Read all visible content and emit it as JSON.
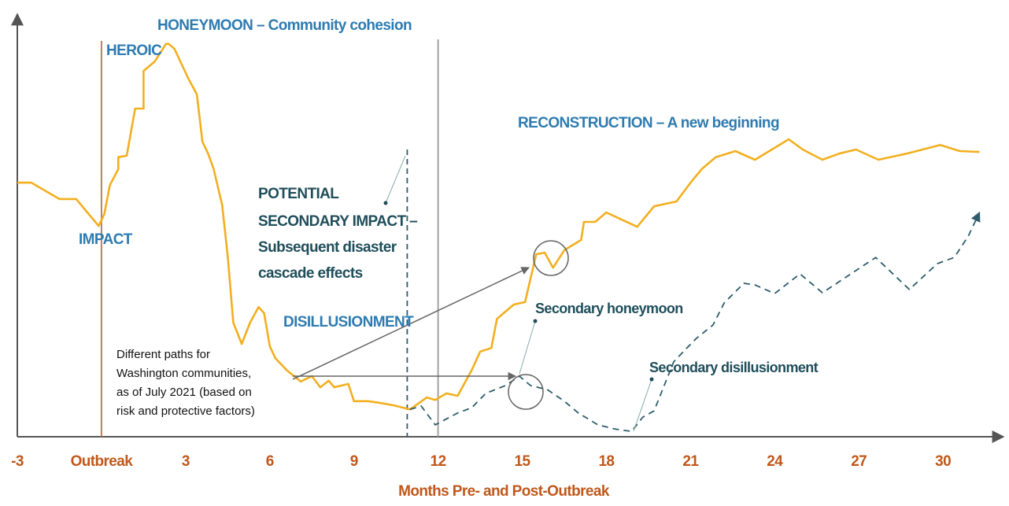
{
  "chart_data": {
    "type": "line",
    "xlabel": "Months Pre- and Post-Outbreak",
    "xlim": [
      -3,
      32
    ],
    "ylim": [
      0,
      100
    ],
    "xticks": [
      -3,
      {
        "value": 0,
        "label": "Outbreak"
      },
      3,
      6,
      9,
      12,
      15,
      18,
      21,
      24,
      27,
      30
    ],
    "series": [
      {
        "color": "#f2af1f",
        "style": "solid",
        "x": [
          -3.0,
          -2.5,
          -1.5,
          -0.9,
          -0.1,
          0.1,
          0.3,
          0.6,
          0.6,
          0.9,
          1.2,
          1.5,
          1.5,
          1.9,
          2.3,
          2.4,
          2.6,
          3.1,
          3.4,
          3.6,
          3.8,
          4.0,
          4.3,
          4.5,
          4.7,
          5.0,
          5.3,
          5.6,
          5.8,
          6.0,
          6.2,
          6.6,
          7.1,
          7.5,
          7.8,
          8.1,
          8.3,
          8.8,
          9.0,
          9.5,
          9.9,
          10.4,
          11.0,
          11.6,
          11.9,
          12.3,
          12.7,
          13.2,
          13.5,
          13.9,
          14.1,
          14.7,
          15.1,
          15.5,
          15.8,
          16.1,
          16.5,
          17.1,
          17.2,
          17.6,
          18.0,
          18.6,
          19.1,
          19.7,
          20.5,
          21.0,
          21.4,
          21.9,
          22.6,
          23.3,
          24.5,
          25.0,
          25.7,
          26.3,
          26.9,
          27.7,
          28.7,
          29.9,
          30.6,
          31.3
        ],
        "values": [
          62.1,
          62.1,
          58.1,
          58.1,
          51.5,
          54.4,
          61.5,
          65.4,
          68.3,
          68.7,
          80.2,
          80.2,
          89.4,
          91.7,
          96.0,
          96.0,
          94.8,
          87.5,
          83.7,
          72.1,
          69.2,
          65.4,
          56.7,
          44.2,
          27.9,
          22.7,
          27.9,
          31.7,
          30.2,
          22.1,
          19.2,
          16.3,
          13.5,
          14.8,
          12.1,
          13.7,
          12.1,
          12.9,
          8.7,
          8.7,
          8.3,
          7.7,
          6.7,
          9.6,
          9.0,
          10.6,
          10.0,
          16.3,
          20.8,
          21.7,
          28.8,
          32.3,
          32.9,
          44.6,
          45.0,
          41.3,
          45.6,
          48.1,
          52.5,
          52.5,
          54.8,
          52.9,
          51.3,
          56.3,
          57.5,
          62.1,
          65.4,
          68.3,
          69.8,
          67.7,
          72.7,
          70.2,
          67.7,
          69.2,
          70.2,
          67.7,
          69.2,
          71.3,
          69.8,
          69.6
        ]
      },
      {
        "color": "#2d5c6b",
        "style": "dashed",
        "x": [
          11.0,
          11.4,
          11.9,
          12.7,
          13.2,
          13.7,
          14.4,
          14.9,
          15.3,
          15.9,
          16.5,
          17.0,
          17.7,
          18.3,
          18.9,
          19.3,
          19.7,
          20.4,
          20.8,
          21.2,
          21.8,
          22.2,
          22.9,
          23.3,
          24.0,
          24.9,
          25.7,
          27.6,
          28.8,
          29.8,
          30.4,
          30.9,
          31.3
        ],
        "values": [
          6.7,
          7.5,
          2.9,
          5.8,
          7.1,
          10.6,
          12.5,
          14.8,
          12.5,
          11.5,
          8.7,
          5.8,
          2.9,
          1.9,
          1.3,
          4.8,
          6.3,
          18.3,
          21.2,
          24.0,
          27.3,
          32.7,
          37.5,
          37.1,
          35.0,
          39.8,
          35.2,
          43.8,
          36.0,
          42.3,
          43.8,
          49.0,
          54.8
        ]
      }
    ],
    "vlines": [
      {
        "x": 0,
        "color": "#c0714b",
        "style": "solid"
      },
      {
        "x": 10.9,
        "color": "#2d5c6b",
        "style": "dashed"
      },
      {
        "x": 12,
        "color": "#999999",
        "style": "solid"
      }
    ],
    "annotations": [
      {
        "lines": [
          "HONEYMOON – Community cohesion"
        ],
        "color": "#2e7bb0"
      },
      {
        "lines": [
          "HEROIC"
        ],
        "color": "#2e7bb0"
      },
      {
        "lines": [
          "IMPACT"
        ],
        "color": "#2e7bb0"
      },
      {
        "lines": [
          "RECONSTRUCTION – A new beginning"
        ],
        "color": "#2e7bb0"
      },
      {
        "lines": [
          "POTENTIAL",
          "SECONDARY IMPACT –",
          "Subsequent disaster",
          "cascade effects"
        ],
        "color": "#1f4e5a"
      },
      {
        "lines": [
          "DISILLUSIONMENT"
        ],
        "color": "#2e7bb0"
      },
      {
        "lines": [
          "Secondary honeymoon"
        ],
        "color": "#1f4e5a"
      },
      {
        "lines": [
          "Secondary disillusionment"
        ],
        "color": "#1f4e5a"
      },
      {
        "lines": [
          "Different paths for",
          "Washington communities,",
          "as of July 2021 (based on",
          "risk and protective factors)"
        ],
        "color": "#111111"
      }
    ]
  }
}
